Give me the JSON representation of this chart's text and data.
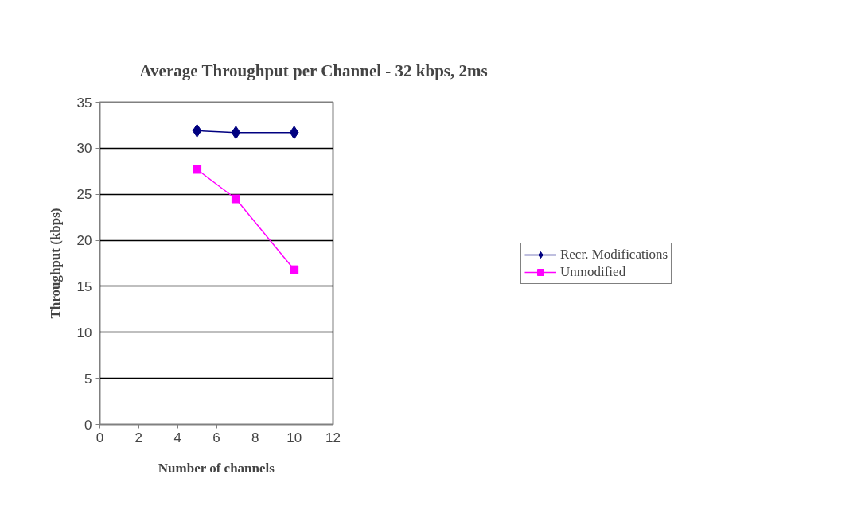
{
  "chart_data": {
    "type": "line",
    "title": "Average Throughput per Channel - 32 kbps, 2ms",
    "xlabel": "Number of channels",
    "ylabel": "Throughput (kbps)",
    "x": [
      5,
      7,
      10
    ],
    "series": [
      {
        "name": "Recr. Modifications",
        "color": "#000080",
        "values": [
          31.9,
          31.7,
          31.7
        ],
        "marker": "diamond"
      },
      {
        "name": "Unmodified",
        "color": "#ff00ff",
        "values": [
          27.7,
          24.5,
          16.8
        ],
        "marker": "square"
      }
    ],
    "xlim": [
      0,
      12
    ],
    "xticks": [
      0,
      2,
      4,
      6,
      8,
      10,
      12
    ],
    "ylim": [
      0,
      35
    ],
    "yticks": [
      0,
      5,
      10,
      15,
      20,
      25,
      30,
      35
    ],
    "grid": "y",
    "legend": "right",
    "line_style": "solid"
  }
}
